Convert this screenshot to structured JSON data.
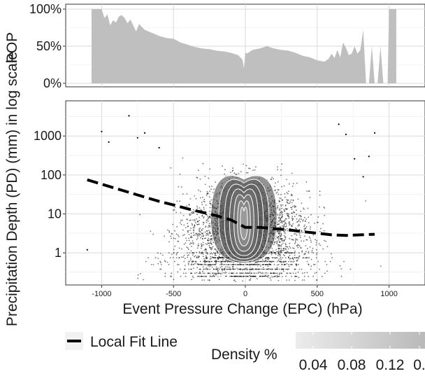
{
  "chart_data": [
    {
      "type": "area",
      "ylabel": "POP",
      "yticks": [
        "0%",
        "50%",
        "100%"
      ],
      "ylim": [
        0,
        100
      ],
      "xlim": [
        -1250,
        1250
      ],
      "grid": true,
      "fill_color": "#bfbfbf",
      "series": [
        {
          "x": [
            -1070,
            -1070,
            -1000,
            -980,
            -960,
            -940,
            -920,
            -900,
            -880,
            -860,
            -840,
            -820,
            -800,
            -780,
            -760,
            -740,
            -720,
            -700,
            -650,
            -600,
            -550,
            -500,
            -450,
            -400,
            -350,
            -300,
            -250,
            -200,
            -150,
            -100,
            -50,
            -20,
            -10,
            0,
            10,
            50,
            100,
            150,
            200,
            250,
            300,
            350,
            400,
            450,
            500,
            530,
            550,
            580,
            600,
            620,
            640,
            660,
            680,
            700,
            720,
            740,
            760,
            780,
            800,
            820,
            840,
            860,
            880,
            900,
            920,
            940,
            960,
            990,
            1000,
            1050,
            1050
          ],
          "y": [
            0,
            100,
            100,
            88,
            93,
            78,
            85,
            82,
            90,
            92,
            88,
            81,
            86,
            78,
            70,
            80,
            76,
            72,
            68,
            64,
            61,
            60,
            55,
            52,
            49,
            47,
            46,
            44,
            43,
            41,
            38,
            32,
            20,
            42,
            40,
            45,
            47,
            50,
            47,
            45,
            44,
            41,
            37,
            35,
            31,
            30,
            29,
            33,
            40,
            34,
            45,
            35,
            55,
            48,
            38,
            40,
            50,
            40,
            45,
            72,
            0,
            0,
            50,
            0,
            0,
            50,
            0,
            0,
            100,
            100,
            0
          ]
        }
      ]
    },
    {
      "type": "scatter",
      "xlabel": "Event Pressure Change (EPC) (hPa)",
      "ylabel": "Precipitation Depth (PD) (mm) in log scale",
      "xticks": [
        -1000,
        -500,
        0,
        500,
        1000
      ],
      "xlim": [
        -1250,
        1250
      ],
      "yticks": [
        1,
        10,
        100,
        1000
      ],
      "ylim": [
        0.15,
        8000
      ],
      "yscale": "log",
      "grid": true,
      "point_color": "#000000",
      "outlier_points": [
        [
          -1000,
          1300
        ],
        [
          -950,
          700
        ],
        [
          -810,
          3300
        ],
        [
          -700,
          1200
        ],
        [
          -1100,
          1.2
        ],
        [
          -750,
          900
        ],
        [
          900,
          1200
        ],
        [
          860,
          300
        ],
        [
          760,
          260
        ],
        [
          820,
          90
        ],
        [
          -600,
          500
        ],
        [
          700,
          1100
        ],
        [
          650,
          2000
        ]
      ],
      "fit_line": {
        "name": "Local Fit Line",
        "style": "dashed",
        "color": "#000000",
        "x": [
          -1100,
          -1000,
          -900,
          -800,
          -700,
          -600,
          -500,
          -400,
          -300,
          -200,
          -100,
          0,
          100,
          200,
          300,
          400,
          500,
          600,
          700,
          800,
          900
        ],
        "y": [
          75,
          58,
          45,
          35,
          27,
          21,
          17,
          13.5,
          11,
          9,
          7,
          4.5,
          4.5,
          4.2,
          3.9,
          3.5,
          3.2,
          2.9,
          2.8,
          2.9,
          3.0
        ]
      },
      "density_contours": {
        "legend_title": "Density %",
        "legend_ticks": [
          "0.04",
          "0.08",
          "0.12",
          "0."
        ],
        "color_range": [
          "#eeeeee",
          "#383838"
        ]
      }
    }
  ]
}
